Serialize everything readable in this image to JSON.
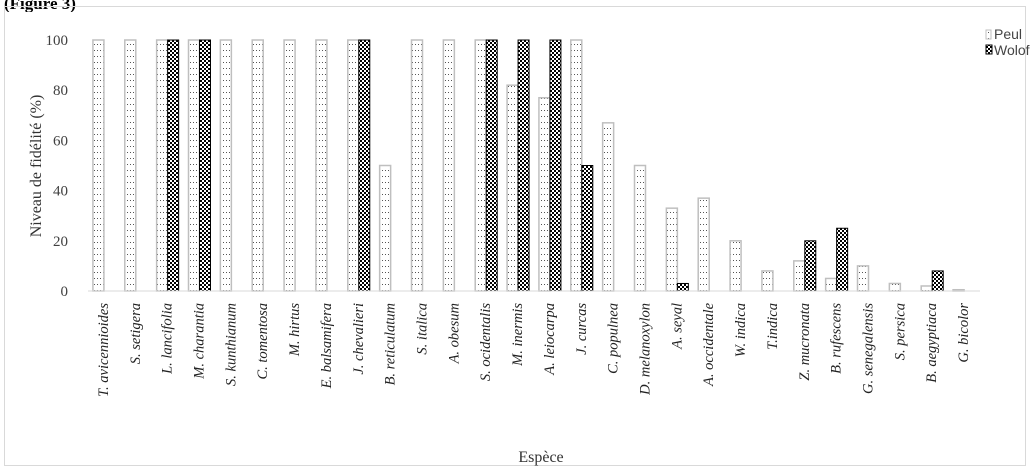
{
  "caption": "(Figure 3)",
  "chart_data": {
    "type": "bar",
    "xlabel": "Espèce",
    "ylabel": "Niveau de fidélité (%)",
    "ylim": [
      0,
      100
    ],
    "yticks": [
      "0",
      "20",
      "40",
      "60",
      "80",
      "100"
    ],
    "legend_position": "top-right",
    "categories": [
      "T. avicennioides",
      "S. setigera",
      "L. lancifolia",
      "M. charantia",
      "S. kunthianum",
      "C. tomentosa",
      "M. hirtus",
      "E. balsamifera",
      "J. chevalieri",
      "B. reticulatum",
      "S. italica",
      "A. obesum",
      "S. ocidentalis",
      "M. inermis",
      "A. leiocarpa",
      "J. curcas",
      "C. populnea",
      "D. melanoxylon",
      "A. seyal",
      "A. occidentale",
      "W. indica",
      "T.indica",
      "Z. mucronata",
      "B. rufescens",
      "G. senegalensis",
      "S. persica",
      "B. aegyptiaca",
      "G. bicolor"
    ],
    "series": [
      {
        "name": "Peul",
        "values": [
          100,
          100,
          100,
          100,
          100,
          100,
          100,
          100,
          100,
          50,
          100,
          100,
          100,
          82,
          77,
          100,
          67,
          50,
          33,
          37,
          20,
          8,
          12,
          5,
          10,
          3,
          2,
          0.5
        ]
      },
      {
        "name": "Wolof",
        "values": [
          0,
          0,
          100,
          100,
          0,
          0,
          0,
          0,
          100,
          0,
          0,
          0,
          100,
          100,
          100,
          50,
          0,
          0,
          3,
          0,
          0,
          0,
          20,
          25,
          0,
          0,
          8,
          0
        ]
      }
    ],
    "colors": {
      "peul": "#bfbfbf",
      "wolof": "#000000"
    }
  }
}
